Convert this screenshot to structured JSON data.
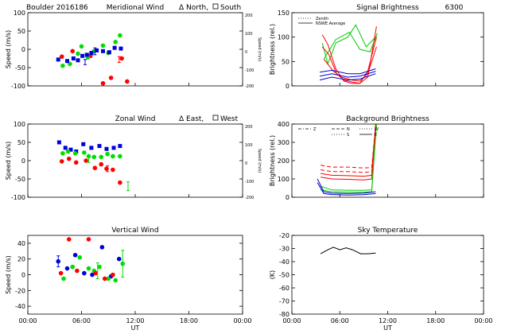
{
  "chart_data": [
    {
      "type": "scatter",
      "title": "Meridional Wind",
      "extra_title": "Boulder   2016186",
      "legend_text": [
        "Δ North,",
        "South"
      ],
      "ylabel": "Speed (m/s)",
      "ylabel_right": "Speed (m/s)",
      "xlim": [
        0,
        24
      ],
      "ylim": [
        -100,
        100
      ],
      "yticks": [
        -100,
        -50,
        0,
        50,
        100
      ],
      "right_ticks": [
        "200",
        "100",
        "0",
        "-100",
        "-200"
      ],
      "xticks": [
        "00:00",
        "06:00",
        "12:00",
        "18:00",
        "00:00"
      ],
      "xticks_visible": false,
      "series": [
        {
          "color": "#ff0000",
          "marker": "circle",
          "points": [
            [
              3.8,
              -20
            ],
            [
              5.0,
              -5
            ],
            [
              7.0,
              -18
            ],
            [
              8.4,
              -93
            ],
            [
              9.3,
              -78
            ],
            [
              10.5,
              -25
            ],
            [
              11.1,
              -88
            ]
          ]
        },
        {
          "color": "#00dd00",
          "marker": "circle",
          "points": [
            [
              3.9,
              -45
            ],
            [
              4.7,
              -40
            ],
            [
              5.6,
              -12
            ],
            [
              6.0,
              8
            ],
            [
              6.7,
              -22
            ],
            [
              7.4,
              -5
            ],
            [
              8.4,
              10
            ],
            [
              9.0,
              -10
            ],
            [
              9.8,
              20
            ],
            [
              10.3,
              38
            ]
          ]
        },
        {
          "color": "#0000dd",
          "marker": "square",
          "points": [
            [
              3.4,
              -28
            ],
            [
              4.4,
              -32
            ],
            [
              5.1,
              -25
            ],
            [
              5.6,
              -30
            ],
            [
              6.1,
              -18
            ],
            [
              6.6,
              -15
            ],
            [
              7.1,
              -10
            ],
            [
              7.7,
              -3
            ],
            [
              8.4,
              -5
            ],
            [
              9.1,
              -8
            ],
            [
              9.7,
              4
            ],
            [
              10.4,
              2
            ]
          ]
        }
      ],
      "errorbars": [
        {
          "x": 6.4,
          "y": -35,
          "lo": -42,
          "hi": -28,
          "color": "#0000dd"
        },
        {
          "x": 7.5,
          "y": -5,
          "lo": -15,
          "hi": 4,
          "color": "#0000dd"
        },
        {
          "x": 10.2,
          "y": -28,
          "lo": -36,
          "hi": -20,
          "color": "#ff0000"
        }
      ]
    },
    {
      "type": "line",
      "title": "Signal Brightness",
      "extra_title": "6300",
      "ylabel": "Brightness (rel.)",
      "legend": [
        "Zenith",
        "NSWE Average"
      ],
      "xlim": [
        0,
        24
      ],
      "ylim": [
        0,
        150
      ],
      "yticks": [
        0,
        50,
        100,
        150
      ],
      "xticks": [
        "00:00",
        "06:00",
        "12:00",
        "18:00",
        "00:00"
      ],
      "xticks_visible": false,
      "series": [
        {
          "color": "#00cc00",
          "points": [
            [
              3.8,
              88
            ],
            [
              4.5,
              45
            ],
            [
              5.5,
              88
            ],
            [
              7.0,
              100
            ],
            [
              8.0,
              125
            ],
            [
              9.3,
              80
            ],
            [
              10.6,
              102
            ]
          ]
        },
        {
          "color": "#00cc00",
          "points": [
            [
              4.0,
              55
            ],
            [
              5.5,
              95
            ],
            [
              7.2,
              110
            ],
            [
              8.5,
              75
            ],
            [
              9.8,
              70
            ],
            [
              10.7,
              108
            ]
          ]
        },
        {
          "color": "#ff0000",
          "points": [
            [
              3.8,
              105
            ],
            [
              4.5,
              85
            ],
            [
              5.5,
              35
            ],
            [
              6.5,
              10
            ],
            [
              7.5,
              5
            ],
            [
              8.5,
              5
            ],
            [
              9.5,
              18
            ],
            [
              10.6,
              122
            ]
          ]
        },
        {
          "color": "#ff0000",
          "points": [
            [
              3.8,
              80
            ],
            [
              4.6,
              65
            ],
            [
              5.6,
              25
            ],
            [
              6.5,
              12
            ],
            [
              7.5,
              8
            ],
            [
              8.5,
              5
            ],
            [
              9.5,
              30
            ],
            [
              10.6,
              100
            ]
          ]
        },
        {
          "color": "#ff0000",
          "points": [
            [
              4.0,
              55
            ],
            [
              5.2,
              30
            ],
            [
              6.2,
              18
            ],
            [
              7.5,
              12
            ],
            [
              8.5,
              10
            ],
            [
              9.5,
              25
            ],
            [
              10.6,
              80
            ]
          ]
        },
        {
          "color": "#0000cc",
          "points": [
            [
              3.5,
              28
            ],
            [
              5.0,
              32
            ],
            [
              7.0,
              25
            ],
            [
              8.5,
              25
            ],
            [
              10.5,
              35
            ]
          ]
        },
        {
          "color": "#0000cc",
          "points": [
            [
              3.5,
              20
            ],
            [
              5.0,
              25
            ],
            [
              7.0,
              18
            ],
            [
              8.5,
              20
            ],
            [
              10.5,
              30
            ]
          ]
        },
        {
          "color": "#0000cc",
          "points": [
            [
              3.5,
              12
            ],
            [
              5.0,
              18
            ],
            [
              7.0,
              12
            ],
            [
              8.5,
              14
            ],
            [
              10.5,
              25
            ]
          ]
        }
      ]
    },
    {
      "type": "scatter",
      "title": "Zonal Wind",
      "legend_text": [
        "Δ East,",
        "West"
      ],
      "ylabel": "Speed (m/s)",
      "ylabel_right": "Speed (m/s)",
      "xlim": [
        0,
        24
      ],
      "ylim": [
        -100,
        100
      ],
      "yticks": [
        -100,
        -50,
        0,
        50,
        100
      ],
      "right_ticks": [
        "200",
        "100",
        "0",
        "-100",
        "-200"
      ],
      "xticks": [
        "00:00",
        "06:00",
        "12:00",
        "18:00",
        "00:00"
      ],
      "xticks_visible": false,
      "series": [
        {
          "color": "#0000dd",
          "marker": "square",
          "points": [
            [
              3.5,
              50
            ],
            [
              4.2,
              35
            ],
            [
              4.8,
              30
            ],
            [
              5.4,
              25
            ],
            [
              6.2,
              45
            ],
            [
              7.1,
              35
            ],
            [
              8.0,
              40
            ],
            [
              8.8,
              32
            ],
            [
              9.6,
              35
            ],
            [
              10.3,
              40
            ]
          ]
        },
        {
          "color": "#00dd00",
          "marker": "circle",
          "points": [
            [
              3.9,
              20
            ],
            [
              4.5,
              25
            ],
            [
              5.3,
              20
            ],
            [
              6.3,
              22
            ],
            [
              6.8,
              12
            ],
            [
              7.4,
              10
            ],
            [
              8.2,
              10
            ],
            [
              8.9,
              18
            ],
            [
              9.5,
              12
            ],
            [
              10.3,
              12
            ]
          ]
        },
        {
          "color": "#ff0000",
          "marker": "circle",
          "points": [
            [
              3.8,
              -2
            ],
            [
              4.6,
              5
            ],
            [
              5.4,
              -5
            ],
            [
              6.5,
              0
            ],
            [
              7.5,
              -20
            ],
            [
              8.2,
              -10
            ],
            [
              8.8,
              -22
            ],
            [
              9.5,
              -25
            ],
            [
              10.3,
              -60
            ]
          ]
        }
      ],
      "errorbars": [
        {
          "x": 6.8,
          "y": 5,
          "lo": -5,
          "hi": 15,
          "color": "#00dd00"
        },
        {
          "x": 8.9,
          "y": -22,
          "lo": -30,
          "hi": -14,
          "color": "#ff0000"
        },
        {
          "x": 11.2,
          "y": -70,
          "lo": -82,
          "hi": -58,
          "color": "#00dd00"
        }
      ]
    },
    {
      "type": "line",
      "title": "Background Brightness",
      "ylabel": "Brightness (rel.)",
      "legend": [
        "Z",
        "N",
        "S",
        "W",
        "E"
      ],
      "xlim": [
        0,
        24
      ],
      "ylim": [
        0,
        400
      ],
      "yticks": [
        0,
        100,
        200,
        300,
        400
      ],
      "xticks": [
        "00:00",
        "06:00",
        "12:00",
        "18:00",
        "00:00"
      ],
      "xticks_visible": false,
      "series": [
        {
          "color": "#ff0000",
          "dash": "5,3",
          "points": [
            [
              3.6,
              175
            ],
            [
              5,
              165
            ],
            [
              7,
              165
            ],
            [
              9,
              160
            ],
            [
              10,
              162
            ],
            [
              10.5,
              400
            ]
          ]
        },
        {
          "color": "#ff0000",
          "dash": "5,3",
          "points": [
            [
              3.6,
              150
            ],
            [
              5,
              140
            ],
            [
              7,
              140
            ],
            [
              9,
              135
            ],
            [
              10,
              140
            ],
            [
              10.5,
              400
            ]
          ]
        },
        {
          "color": "#ff0000",
          "points": [
            [
              3.6,
              130
            ],
            [
              5,
              120
            ],
            [
              7,
              118
            ],
            [
              9,
              115
            ],
            [
              10,
              120
            ],
            [
              10.5,
              400
            ]
          ]
        },
        {
          "color": "#ff0000",
          "points": [
            [
              3.6,
              110
            ],
            [
              5,
              100
            ],
            [
              7,
              98
            ],
            [
              9,
              95
            ],
            [
              10,
              100
            ],
            [
              10.5,
              400
            ]
          ]
        },
        {
          "color": "#00cc00",
          "points": [
            [
              3.6,
              60
            ],
            [
              5,
              40
            ],
            [
              7,
              38
            ],
            [
              9,
              38
            ],
            [
              10,
              40
            ],
            [
              10.6,
              400
            ]
          ]
        },
        {
          "color": "#00cc00",
          "points": [
            [
              3.6,
              40
            ],
            [
              5,
              30
            ],
            [
              7,
              28
            ],
            [
              9,
              28
            ],
            [
              10,
              30
            ],
            [
              10.6,
              400
            ]
          ]
        },
        {
          "color": "#0000cc",
          "points": [
            [
              3.2,
              100
            ],
            [
              4,
              30
            ],
            [
              5,
              22
            ],
            [
              7,
              20
            ],
            [
              9,
              22
            ],
            [
              10.5,
              30
            ]
          ]
        },
        {
          "color": "#0000cc",
          "points": [
            [
              3.2,
              80
            ],
            [
              4,
              20
            ],
            [
              5,
              15
            ],
            [
              7,
              12
            ],
            [
              9,
              14
            ],
            [
              10.5,
              20
            ]
          ]
        }
      ]
    },
    {
      "type": "scatter",
      "title": "Vertical Wind",
      "ylabel": "Speed (m/s)",
      "xlim": [
        0,
        24
      ],
      "ylim": [
        -50,
        50
      ],
      "yticks": [
        -40,
        -20,
        0,
        20,
        40
      ],
      "xticks": [
        "00:00",
        "06:00",
        "12:00",
        "18:00",
        "00:00"
      ],
      "xlabel": "UT",
      "series": [
        {
          "color": "#0000dd",
          "marker": "circle",
          "points": [
            [
              3.4,
              17
            ],
            [
              4.4,
              8
            ],
            [
              5.3,
              25
            ],
            [
              6.3,
              2
            ],
            [
              7.2,
              0
            ],
            [
              8.3,
              35
            ],
            [
              9.3,
              -2
            ],
            [
              10.2,
              20
            ]
          ]
        },
        {
          "color": "#00dd00",
          "marker": "circle",
          "points": [
            [
              4.0,
              -5
            ],
            [
              5.0,
              10
            ],
            [
              5.8,
              22
            ],
            [
              6.8,
              8
            ],
            [
              7.4,
              5
            ],
            [
              8.0,
              10
            ],
            [
              9.0,
              -5
            ],
            [
              9.8,
              -7
            ],
            [
              10.6,
              14
            ]
          ]
        },
        {
          "color": "#ff0000",
          "marker": "circle",
          "points": [
            [
              3.7,
              2
            ],
            [
              4.6,
              45
            ],
            [
              5.5,
              5
            ],
            [
              6.8,
              45
            ],
            [
              7.6,
              2
            ],
            [
              8.6,
              -5
            ],
            [
              9.5,
              0
            ]
          ]
        }
      ],
      "errorbars": [
        {
          "x": 3.4,
          "y": 17,
          "lo": 10,
          "hi": 24,
          "color": "#0000dd"
        },
        {
          "x": 7.8,
          "y": 5,
          "lo": -5,
          "hi": 15,
          "color": "#00dd00"
        },
        {
          "x": 10.6,
          "y": 14,
          "lo": -3,
          "hi": 31,
          "color": "#00dd00"
        }
      ]
    },
    {
      "type": "line",
      "title": "Sky Temperature",
      "ylabel": "(K)",
      "xlim": [
        0,
        24
      ],
      "ylim": [
        -80,
        -20
      ],
      "yticks": [
        -80,
        -70,
        -60,
        -50,
        -40,
        -30,
        -20
      ],
      "xticks": [
        "00:00",
        "06:00",
        "12:00",
        "18:00",
        "00:00"
      ],
      "xlabel": "UT",
      "series": [
        {
          "color": "#000000",
          "points": [
            [
              3.6,
              -34
            ],
            [
              4.5,
              -31
            ],
            [
              5.2,
              -29
            ],
            [
              6.0,
              -31
            ],
            [
              6.8,
              -29.5
            ],
            [
              7.6,
              -31
            ],
            [
              8.6,
              -34
            ],
            [
              9.5,
              -34
            ],
            [
              10.5,
              -33.5
            ]
          ]
        }
      ]
    }
  ]
}
